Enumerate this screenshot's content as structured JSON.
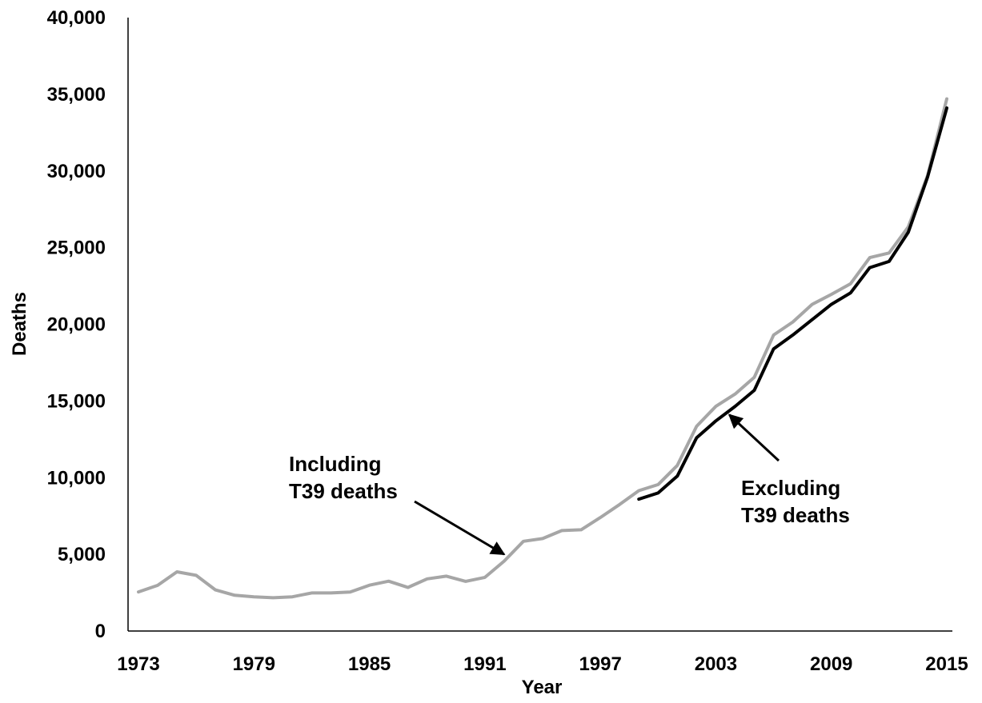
{
  "chart_data": {
    "type": "line",
    "title": "",
    "xlabel": "Year",
    "ylabel": "Deaths",
    "xlim": [
      1973,
      2015
    ],
    "ylim": [
      0,
      40000
    ],
    "x_ticks": [
      1973,
      1979,
      1985,
      1991,
      1997,
      2003,
      2009,
      2015
    ],
    "y_ticks": [
      0,
      5000,
      10000,
      15000,
      20000,
      25000,
      30000,
      35000,
      40000
    ],
    "x_tick_labels": [
      "1973",
      "1979",
      "1985",
      "1991",
      "1997",
      "2003",
      "2009",
      "2015"
    ],
    "y_tick_labels": [
      "0",
      "5,000",
      "10,000",
      "15,000",
      "20,000",
      "25,000",
      "30,000",
      "35,000",
      "40,000"
    ],
    "grid": false,
    "series": [
      {
        "color": "#a6a6a6",
        "x": [
          1973,
          1974,
          1975,
          1976,
          1977,
          1978,
          1979,
          1980,
          1981,
          1982,
          1983,
          1984,
          1985,
          1986,
          1987,
          1988,
          1989,
          1990,
          1991,
          1992,
          1993,
          1994,
          1995,
          1996,
          1997,
          1998,
          1999,
          2000,
          2001,
          2002,
          2003,
          2004,
          2005,
          2006,
          2007,
          2008,
          2009,
          2010,
          2011,
          2012,
          2013,
          2014,
          2015
        ],
        "values": [
          2550,
          2980,
          3860,
          3630,
          2680,
          2330,
          2230,
          2170,
          2230,
          2480,
          2480,
          2540,
          2990,
          3250,
          2840,
          3400,
          3580,
          3240,
          3500,
          4560,
          5850,
          6030,
          6550,
          6600,
          7400,
          8250,
          9150,
          9550,
          10800,
          13350,
          14650,
          15450,
          16550,
          19300,
          20150,
          21300,
          21950,
          22650,
          24350,
          24650,
          26350,
          29700,
          34700
        ]
      },
      {
        "color": "#000000",
        "x": [
          1999,
          2000,
          2001,
          2002,
          2003,
          2004,
          2005,
          2006,
          2007,
          2008,
          2009,
          2010,
          2011,
          2012,
          2013,
          2014,
          2015
        ],
        "values": [
          8600,
          9000,
          10100,
          12600,
          13700,
          14650,
          15700,
          18400,
          19300,
          20300,
          21300,
          22050,
          23700,
          24100,
          26000,
          29600,
          34100
        ]
      }
    ],
    "annotations": [
      {
        "lines": [
          "Including",
          "T39 deaths"
        ],
        "target_x": 1992,
        "target_y": 5000
      },
      {
        "lines": [
          "Excluding",
          "T39 deaths"
        ],
        "target_x": 2003.7,
        "target_y": 14100
      }
    ]
  }
}
